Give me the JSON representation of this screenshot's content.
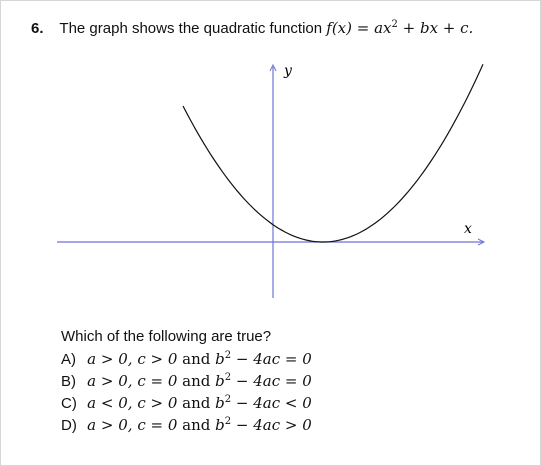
{
  "question": {
    "number": "6.",
    "prompt": "The graph shows the quadratic function",
    "function_lhs": "f(x)",
    "function_rhs_a": "ax",
    "function_rhs_rest": " + bx + c."
  },
  "graph": {
    "y_label": "y",
    "x_label": "x",
    "axis_color": "#6b74d6",
    "curve_color": "#111111"
  },
  "ask": "Which of the following are true?",
  "options": [
    {
      "letter": "A)",
      "a_cond": "a > 0,",
      "c_cond": "c > 0",
      "and": "and",
      "disc": "b",
      "disc_rest": " − 4ac = 0"
    },
    {
      "letter": "B)",
      "a_cond": "a > 0,",
      "c_cond": "c = 0",
      "and": "and",
      "disc": "b",
      "disc_rest": " − 4ac = 0"
    },
    {
      "letter": "C)",
      "a_cond": "a < 0,",
      "c_cond": "c > 0",
      "and": "and",
      "disc": "b",
      "disc_rest": " − 4ac < 0"
    },
    {
      "letter": "D)",
      "a_cond": "a > 0,",
      "c_cond": "c = 0",
      "and": "and",
      "disc": "b",
      "disc_rest": " − 4ac > 0"
    }
  ]
}
